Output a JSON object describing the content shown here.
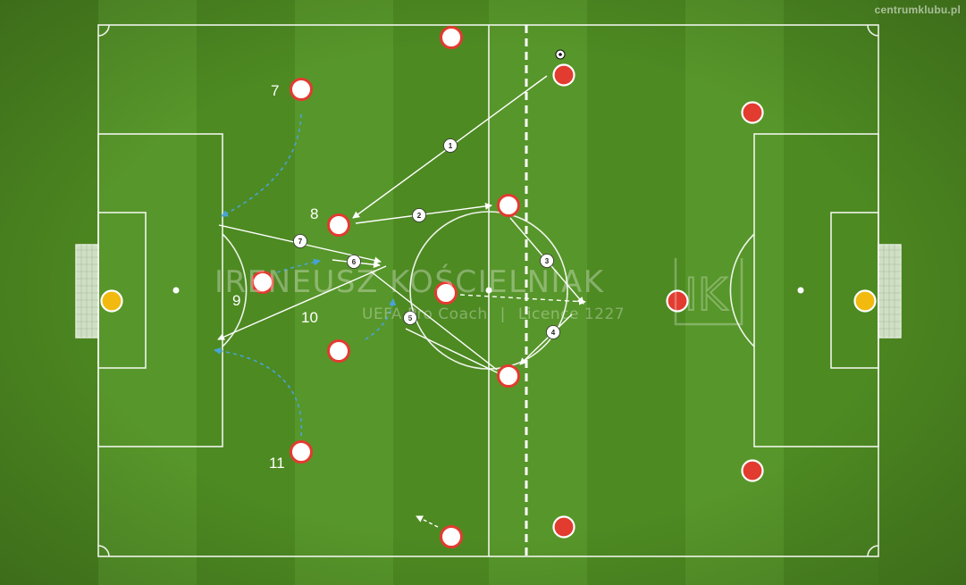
{
  "site": "centrumklubu.pl",
  "watermark": {
    "name": "IRENEUSZ KOŚCIELNIAK",
    "role": "UEFA Pro Coach",
    "separator": "|",
    "licence": "Licence 1227",
    "logo": "IK"
  },
  "player_labels": [
    "7",
    "8",
    "9",
    "10",
    "11"
  ],
  "pass_numbers": [
    "1",
    "2",
    "3",
    "4",
    "5",
    "6",
    "7"
  ],
  "colors": {
    "pitch_dark": "#4a8421",
    "pitch_light": "#5b9a2b",
    "line": "#ffffff",
    "player_home": "#e23b30",
    "player_away": "#e23b30",
    "goalkeeper": "#f2b90f",
    "run_path": "#49a3d6"
  }
}
